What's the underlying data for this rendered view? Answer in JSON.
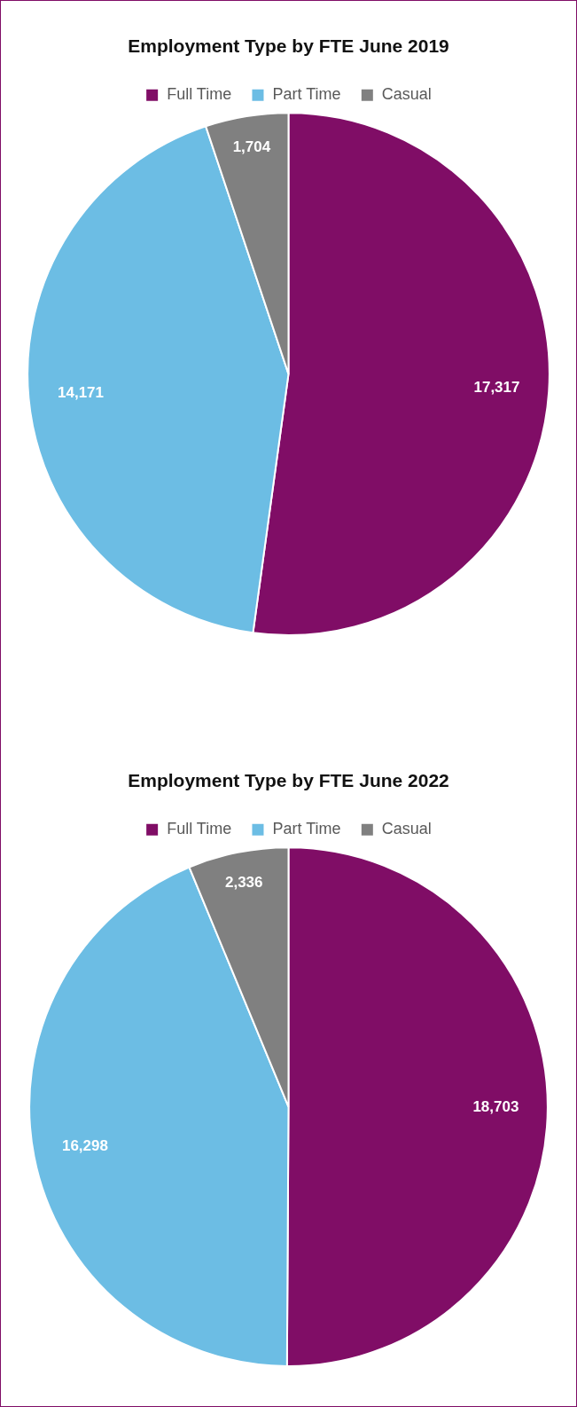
{
  "chart_data": [
    {
      "type": "pie",
      "title": "Employment Type by FTE June 2019",
      "categories": [
        "Full Time",
        "Part Time",
        "Casual"
      ],
      "values": [
        17317,
        14171,
        1704
      ],
      "value_labels": [
        "17,317",
        "14,171",
        "1,704"
      ],
      "colors": [
        "#800d66",
        "#6cbde4",
        "#808080"
      ],
      "legend": "top"
    },
    {
      "type": "pie",
      "title": "Employment Type by FTE June 2022",
      "categories": [
        "Full Time",
        "Part Time",
        "Casual"
      ],
      "values": [
        18703,
        16298,
        2336
      ],
      "value_labels": [
        "18,703",
        "16,298",
        "2,336"
      ],
      "colors": [
        "#800d66",
        "#6cbde4",
        "#808080"
      ],
      "legend": "top"
    }
  ]
}
